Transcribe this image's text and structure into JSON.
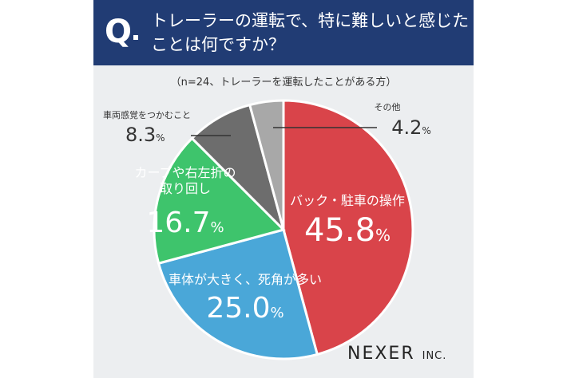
{
  "header": {
    "q_mark": "Q",
    "line1": "トレーラーの運転で、特に難しいと感じた",
    "line2": "ことは何ですか？"
  },
  "note": "（n=24、トレーラーを運転したことがある方）",
  "logo": {
    "main": "NEXER",
    "inc": "INC."
  },
  "colors": {
    "header_bg": "#213c74",
    "card_bg": "#eceef0"
  },
  "chart_data": {
    "type": "pie",
    "title": "",
    "unit": "%",
    "slices": [
      {
        "label": "バック・駐車の操作",
        "label_lines": [
          "バック・駐車の操作"
        ],
        "value": 45.8,
        "color": "#d9444a",
        "label_color": "#ffffff"
      },
      {
        "label": "車体が大きく、死角が多い",
        "label_lines": [
          "車体が大きく、死角が多い"
        ],
        "value": 25.0,
        "color": "#4aa7d8",
        "label_color": "#ffffff"
      },
      {
        "label": "カーブや右左折の取り回し",
        "label_lines": [
          "カーブや右左折の",
          "取り回し"
        ],
        "value": 16.7,
        "color": "#3ec46c",
        "label_color": "#ffffff"
      },
      {
        "label": "車両感覚をつかむこと",
        "label_lines": [
          "車両感覚をつかむこと"
        ],
        "value": 8.3,
        "color": "#6d6d6d",
        "label_color": "#333333"
      },
      {
        "label": "その他",
        "label_lines": [
          "その他"
        ],
        "value": 4.2,
        "color": "#a8a8a8",
        "label_color": "#333333"
      }
    ]
  }
}
